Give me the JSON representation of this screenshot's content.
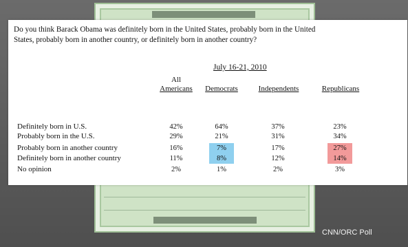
{
  "question": {
    "line1": "Do you think Barack Obama was definitely born in the United States, probably born in the United",
    "line2": "States, probably born in another country, or definitely born in another country?"
  },
  "date": "July 16-21, 2010",
  "columns": [
    {
      "top": "All",
      "label": "Americans"
    },
    {
      "top": "",
      "label": "Democrats"
    },
    {
      "top": "",
      "label": "Independents"
    },
    {
      "top": "",
      "label": "Republicans"
    }
  ],
  "rows": [
    {
      "label": "Definitely born in U.S.",
      "values": [
        "42%",
        "64%",
        "37%",
        "23%"
      ]
    },
    {
      "label": "Probably born in the U.S.",
      "values": [
        "29%",
        "21%",
        "31%",
        "34%"
      ]
    },
    {
      "label": "Probably born in another country",
      "values": [
        "16%",
        "7%",
        "17%",
        "27%"
      ]
    },
    {
      "label": "Definitely born in another country",
      "values": [
        "11%",
        "8%",
        "12%",
        "14%"
      ]
    },
    {
      "label": "No opinion",
      "values": [
        "2%",
        "1%",
        "2%",
        "3%"
      ]
    }
  ],
  "highlight_colors": {
    "democrats": "#8fd0ef",
    "republicans": "#f29a9a"
  },
  "source": "CNN/ORC Poll"
}
